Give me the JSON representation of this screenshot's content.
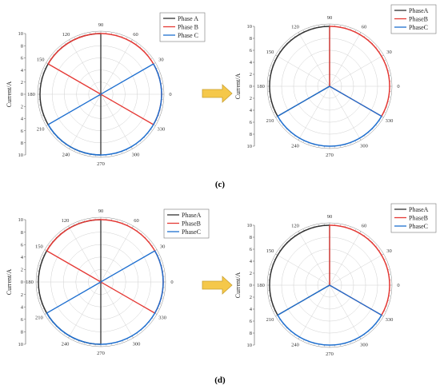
{
  "colors": {
    "phaseA": "#333333",
    "phaseB": "#e53935",
    "phaseC": "#1e6fd0",
    "grid": "#d0d0d0",
    "arrow": "#f5c84a"
  },
  "captions": {
    "c": "(c)",
    "d": "(d)"
  },
  "chart_data": [
    {
      "id": "c-before",
      "type": "polar-line",
      "ylabel": "Current/A",
      "rlim": [
        0,
        10
      ],
      "radial_ticks": [
        "10",
        "8",
        "6",
        "4",
        "2",
        "0",
        "2",
        "4",
        "6",
        "8",
        "10"
      ],
      "angle_labels": [
        "0",
        "30",
        "60",
        "90",
        "120",
        "150",
        "180",
        "210",
        "240",
        "270",
        "300",
        "330"
      ],
      "legend": [
        "Phase A",
        "Phase B",
        "Phase C"
      ],
      "series": [
        {
          "name": "Phase A",
          "spokes_deg": [
            90,
            270
          ],
          "arc_deg": [
            90,
            270
          ],
          "r": 10
        },
        {
          "name": "Phase B",
          "spokes_deg": [
            150,
            330
          ],
          "arc_deg": [
            -30,
            150
          ],
          "r": 10
        },
        {
          "name": "Phase C",
          "spokes_deg": [
            30,
            210
          ],
          "arc_deg": [
            210,
            390
          ],
          "r": 10
        }
      ]
    },
    {
      "id": "c-after",
      "type": "polar-line",
      "ylabel": "Current/A",
      "rlim": [
        0,
        10
      ],
      "radial_ticks": [
        "10",
        "8",
        "6",
        "4",
        "2",
        "0",
        "2",
        "4",
        "6",
        "8",
        "10"
      ],
      "angle_labels": [
        "0",
        "30",
        "60",
        "90",
        "120",
        "150",
        "180",
        "210",
        "240",
        "270",
        "300",
        "330"
      ],
      "legend": [
        "PhaseA",
        "PhaseB",
        "PhaseC"
      ],
      "series": [
        {
          "name": "PhaseA",
          "spokes_deg": [
            90,
            210
          ],
          "arc_deg": [
            90,
            210
          ],
          "r": 10
        },
        {
          "name": "PhaseB",
          "spokes_deg": [
            90,
            330
          ],
          "arc_deg": [
            -30,
            90
          ],
          "r": 10
        },
        {
          "name": "PhaseC",
          "spokes_deg": [
            210,
            330
          ],
          "arc_deg": [
            210,
            330
          ],
          "r": 10
        }
      ]
    },
    {
      "id": "d-before",
      "type": "polar-line",
      "ylabel": "Current/A",
      "rlim": [
        0,
        10
      ],
      "radial_ticks": [
        "10",
        "8",
        "6",
        "4",
        "2",
        "0",
        "2",
        "4",
        "6",
        "8",
        "10"
      ],
      "angle_labels": [
        "0",
        "30",
        "60",
        "90",
        "120",
        "150",
        "180",
        "210",
        "240",
        "270",
        "300",
        "330"
      ],
      "legend": [
        "PhaseA",
        "PhaseB",
        "PhaseC"
      ],
      "series": [
        {
          "name": "PhaseA",
          "spokes_deg": [
            90,
            270
          ],
          "arc_deg": [
            90,
            270
          ],
          "r": 10
        },
        {
          "name": "PhaseB",
          "spokes_deg": [
            150,
            330
          ],
          "arc_deg": [
            -30,
            150
          ],
          "r": 10
        },
        {
          "name": "PhaseC",
          "spokes_deg": [
            30,
            210
          ],
          "arc_deg": [
            210,
            390
          ],
          "r": 10
        }
      ]
    },
    {
      "id": "d-after",
      "type": "polar-line",
      "ylabel": "Current/A",
      "rlim": [
        0,
        10
      ],
      "radial_ticks": [
        "10",
        "8",
        "6",
        "4",
        "2",
        "0",
        "2",
        "4",
        "6",
        "8",
        "10"
      ],
      "angle_labels": [
        "0",
        "30",
        "60",
        "90",
        "120",
        "150",
        "180",
        "210",
        "240",
        "270",
        "300",
        "330"
      ],
      "legend": [
        "PhaseA",
        "PhaseB",
        "PhaseC"
      ],
      "series": [
        {
          "name": "PhaseA",
          "spokes_deg": [
            90,
            210
          ],
          "arc_deg": [
            90,
            210
          ],
          "r": 10
        },
        {
          "name": "PhaseB",
          "spokes_deg": [
            90,
            330
          ],
          "arc_deg": [
            -30,
            90
          ],
          "r": 10
        },
        {
          "name": "PhaseC",
          "spokes_deg": [
            210,
            330
          ],
          "arc_deg": [
            210,
            330
          ],
          "r": 10
        }
      ]
    }
  ]
}
